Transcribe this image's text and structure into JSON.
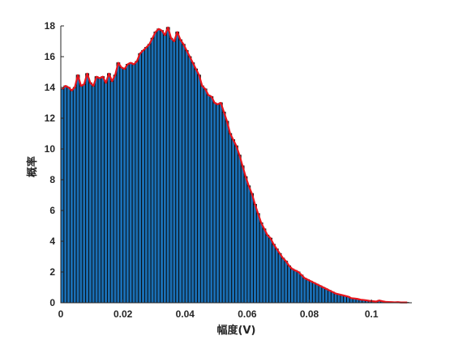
{
  "chart_data": {
    "type": "bar",
    "xlabel": "幅度(V)",
    "ylabel": "概率",
    "xlim": [
      0,
      0.113
    ],
    "ylim": [
      0,
      18
    ],
    "xticks": [
      "0",
      "0.02",
      "0.04",
      "0.06",
      "0.08",
      "0.1"
    ],
    "xtick_values": [
      0,
      0.02,
      0.04,
      0.06,
      0.08,
      0.1
    ],
    "yticks": [
      "0",
      "2",
      "4",
      "6",
      "8",
      "10",
      "12",
      "14",
      "16",
      "18"
    ],
    "ytick_values": [
      0,
      2,
      4,
      6,
      8,
      10,
      12,
      14,
      16,
      18
    ],
    "bin_width": 0.001,
    "x": [
      0.0005,
      0.0015,
      0.0025,
      0.0035,
      0.0045,
      0.0055,
      0.0065,
      0.0075,
      0.0085,
      0.0095,
      0.0105,
      0.0115,
      0.0125,
      0.0135,
      0.0145,
      0.0155,
      0.0165,
      0.0175,
      0.0185,
      0.0195,
      0.0205,
      0.0215,
      0.0225,
      0.0235,
      0.0245,
      0.0255,
      0.0265,
      0.0275,
      0.0285,
      0.0295,
      0.0305,
      0.0315,
      0.0325,
      0.0335,
      0.0345,
      0.0355,
      0.0365,
      0.0375,
      0.0385,
      0.0395,
      0.0405,
      0.0415,
      0.0425,
      0.0435,
      0.0445,
      0.0455,
      0.0465,
      0.0475,
      0.0485,
      0.0495,
      0.0505,
      0.0515,
      0.0525,
      0.0535,
      0.0545,
      0.0555,
      0.0565,
      0.0575,
      0.0585,
      0.0595,
      0.0605,
      0.0615,
      0.0625,
      0.0635,
      0.0645,
      0.0655,
      0.0665,
      0.0675,
      0.0685,
      0.0695,
      0.0705,
      0.0715,
      0.0725,
      0.0735,
      0.0745,
      0.0755,
      0.0765,
      0.0775,
      0.0785,
      0.0795,
      0.0805,
      0.0815,
      0.0825,
      0.0835,
      0.0845,
      0.0855,
      0.0865,
      0.0875,
      0.0885,
      0.0895,
      0.0905,
      0.0915,
      0.0925,
      0.0935,
      0.0945,
      0.0955,
      0.0965,
      0.0975,
      0.0985,
      0.0995,
      0.1005,
      0.1015,
      0.1025,
      0.1035,
      0.1045,
      0.1055,
      0.1065,
      0.1075,
      0.1085,
      0.1095,
      0.1105,
      0.1115
    ],
    "values": [
      13.9,
      14.1,
      14.0,
      13.8,
      14.0,
      14.8,
      14.1,
      14.2,
      14.9,
      14.3,
      14.1,
      14.7,
      14.6,
      14.7,
      14.3,
      14.9,
      14.4,
      14.8,
      15.6,
      15.3,
      15.2,
      15.5,
      15.6,
      15.5,
      15.7,
      16.2,
      16.4,
      16.6,
      16.8,
      17.2,
      17.6,
      17.8,
      17.7,
      17.4,
      17.9,
      17.2,
      17.0,
      17.6,
      17.1,
      16.8,
      16.4,
      16.0,
      15.6,
      15.2,
      14.8,
      14.1,
      13.9,
      13.5,
      13.4,
      13.0,
      12.9,
      13.0,
      12.4,
      11.8,
      11.0,
      10.6,
      10.2,
      9.6,
      8.9,
      8.2,
      7.6,
      7.1,
      6.4,
      5.8,
      5.2,
      4.8,
      4.4,
      4.2,
      3.8,
      3.5,
      3.2,
      2.9,
      2.7,
      2.4,
      2.2,
      2.1,
      2.0,
      1.8,
      1.6,
      1.5,
      1.4,
      1.3,
      1.2,
      1.1,
      1.0,
      0.9,
      0.8,
      0.7,
      0.6,
      0.55,
      0.5,
      0.45,
      0.4,
      0.3,
      0.28,
      0.25,
      0.2,
      0.18,
      0.15,
      0.12,
      0.1,
      0.08,
      0.15,
      0.1,
      0.06,
      0.05,
      0.04,
      0.03,
      0.04,
      0.02,
      0.02,
      0.02
    ],
    "series": [
      {
        "type": "bar",
        "color": "#1a6fb5",
        "edge_color": "#0a0a0a"
      },
      {
        "type": "line",
        "color": "#e8141b"
      }
    ],
    "grid": false,
    "legend": "none"
  }
}
